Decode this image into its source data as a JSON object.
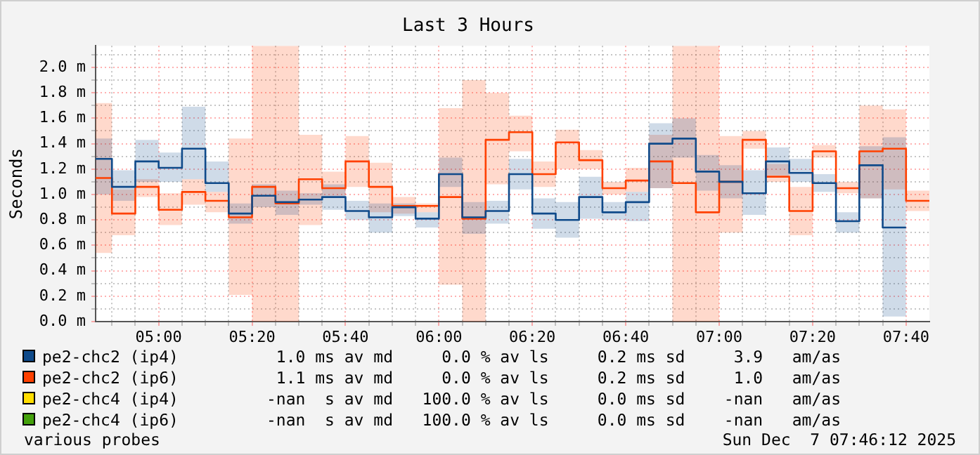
{
  "chart_data": {
    "type": "step",
    "title": "Last 3 Hours",
    "ylabel": "Seconds",
    "x": [
      4.775,
      4.8333,
      4.9167,
      5.0,
      5.0833,
      5.1667,
      5.25,
      5.3333,
      5.4167,
      5.5,
      5.5833,
      5.6667,
      5.75,
      5.8333,
      5.9167,
      6.0,
      6.0833,
      6.1667,
      6.25,
      6.3333,
      6.4167,
      6.5,
      6.5833,
      6.6667,
      6.75,
      6.8333,
      6.9167,
      7.0,
      7.0833,
      7.1667,
      7.25,
      7.3333,
      7.4167,
      7.5,
      7.5833,
      7.6667,
      7.75
    ],
    "xlim": [
      4.775,
      7.75
    ],
    "xticks": [
      {
        "value": 4.8333,
        "label": null
      },
      {
        "value": 4.9167,
        "label": null
      },
      {
        "value": 5.0,
        "label": "05:00"
      },
      {
        "value": 5.0833,
        "label": null
      },
      {
        "value": 5.1667,
        "label": null
      },
      {
        "value": 5.25,
        "label": null
      },
      {
        "value": 5.3333,
        "label": "05:20"
      },
      {
        "value": 5.4167,
        "label": null
      },
      {
        "value": 5.5,
        "label": null
      },
      {
        "value": 5.5833,
        "label": null
      },
      {
        "value": 5.6667,
        "label": "05:40"
      },
      {
        "value": 5.75,
        "label": null
      },
      {
        "value": 5.8333,
        "label": null
      },
      {
        "value": 5.9167,
        "label": null
      },
      {
        "value": 6.0,
        "label": "06:00"
      },
      {
        "value": 6.0833,
        "label": null
      },
      {
        "value": 6.1667,
        "label": null
      },
      {
        "value": 6.25,
        "label": null
      },
      {
        "value": 6.3333,
        "label": "06:20"
      },
      {
        "value": 6.4167,
        "label": null
      },
      {
        "value": 6.5,
        "label": null
      },
      {
        "value": 6.5833,
        "label": null
      },
      {
        "value": 6.6667,
        "label": "06:40"
      },
      {
        "value": 6.75,
        "label": null
      },
      {
        "value": 6.8333,
        "label": null
      },
      {
        "value": 6.9167,
        "label": null
      },
      {
        "value": 7.0,
        "label": "07:00"
      },
      {
        "value": 7.0833,
        "label": null
      },
      {
        "value": 7.1667,
        "label": null
      },
      {
        "value": 7.25,
        "label": null
      },
      {
        "value": 7.3333,
        "label": "07:20"
      },
      {
        "value": 7.4167,
        "label": null
      },
      {
        "value": 7.5,
        "label": null
      },
      {
        "value": 7.5833,
        "label": null
      },
      {
        "value": 7.6667,
        "label": "07:40"
      }
    ],
    "ylim": [
      0,
      2.17
    ],
    "yticks": [
      {
        "value": 0.0,
        "label": "0.0 m"
      },
      {
        "value": 0.1,
        "label": null
      },
      {
        "value": 0.2,
        "label": "0.2 m"
      },
      {
        "value": 0.3,
        "label": null
      },
      {
        "value": 0.4,
        "label": "0.4 m"
      },
      {
        "value": 0.5,
        "label": null
      },
      {
        "value": 0.6,
        "label": "0.6 m"
      },
      {
        "value": 0.7,
        "label": null
      },
      {
        "value": 0.8,
        "label": "0.8 m"
      },
      {
        "value": 0.9,
        "label": null
      },
      {
        "value": 1.0,
        "label": "1.0 m"
      },
      {
        "value": 1.1,
        "label": null
      },
      {
        "value": 1.2,
        "label": "1.2 m"
      },
      {
        "value": 1.3,
        "label": null
      },
      {
        "value": 1.4,
        "label": "1.4 m"
      },
      {
        "value": 1.5,
        "label": null
      },
      {
        "value": 1.6,
        "label": "1.6 m"
      },
      {
        "value": 1.7,
        "label": null
      },
      {
        "value": 1.8,
        "label": "1.8 m"
      },
      {
        "value": 1.9,
        "label": null
      },
      {
        "value": 2.0,
        "label": "2.0 m"
      },
      {
        "value": 2.1,
        "label": null
      }
    ],
    "grid": true,
    "legend": "bottom",
    "series": [
      {
        "name": "pe2-chc2 (ip4)",
        "color": "#0f4a8a",
        "values": [
          1.28,
          1.06,
          1.26,
          1.21,
          1.36,
          1.09,
          0.85,
          0.99,
          0.94,
          0.96,
          0.98,
          0.87,
          0.82,
          0.9,
          0.81,
          1.16,
          0.82,
          0.87,
          1.16,
          0.85,
          0.8,
          0.98,
          0.86,
          0.94,
          1.4,
          1.44,
          1.18,
          1.1,
          1.01,
          1.26,
          1.17,
          1.09,
          0.79,
          1.23,
          0.74,
          0.74,
          null
        ],
        "lower": [
          1.0,
          0.95,
          1.1,
          1.1,
          1.12,
          1.02,
          0.77,
          0.9,
          0.84,
          0.92,
          0.88,
          0.8,
          0.7,
          0.83,
          0.74,
          1.06,
          0.69,
          0.77,
          1.04,
          0.73,
          0.66,
          0.81,
          0.8,
          0.79,
          1.05,
          1.29,
          1.03,
          0.97,
          0.84,
          1.15,
          1.1,
          1.02,
          0.7,
          0.97,
          0.04,
          0.04,
          null
        ],
        "upper": [
          1.44,
          1.19,
          1.43,
          1.33,
          1.69,
          1.26,
          0.93,
          1.08,
          1.03,
          1.01,
          1.08,
          0.95,
          0.93,
          0.93,
          0.86,
          1.29,
          0.94,
          0.95,
          1.28,
          0.97,
          0.94,
          1.14,
          0.94,
          1.02,
          1.56,
          1.6,
          1.31,
          1.23,
          1.19,
          1.37,
          1.28,
          1.16,
          0.86,
          1.38,
          1.45,
          1.45,
          null
        ]
      },
      {
        "name": "pe2-chc2 (ip6)",
        "color": "#ff4000",
        "values": [
          1.13,
          0.85,
          1.06,
          0.88,
          1.02,
          0.95,
          0.82,
          1.06,
          0.93,
          1.12,
          1.05,
          1.26,
          1.06,
          0.91,
          0.91,
          0.98,
          0.81,
          1.43,
          1.49,
          1.16,
          1.41,
          1.27,
          1.05,
          1.11,
          1.26,
          1.09,
          0.86,
          1.1,
          1.43,
          1.14,
          0.87,
          1.34,
          1.05,
          1.34,
          1.36,
          0.95,
          0.95
        ],
        "lower": [
          0.54,
          0.68,
          0.98,
          0.76,
          0.92,
          0.86,
          0.21,
          0,
          0,
          0.76,
          0.99,
          1.06,
          0.86,
          0.85,
          0.86,
          0.29,
          0,
          1.08,
          1.34,
          1.06,
          1.2,
          1.2,
          1.0,
          1.02,
          1.05,
          0,
          0,
          0.7,
          1.36,
          1.1,
          0.68,
          1.29,
          1.01,
          0.97,
          1.04,
          0.87,
          0.87
        ],
        "upper": [
          1.72,
          1.04,
          1.12,
          1.01,
          1.12,
          1.02,
          1.44,
          2.17,
          2.17,
          1.47,
          1.18,
          1.46,
          1.25,
          0.98,
          0.93,
          1.68,
          1.9,
          1.8,
          1.62,
          1.26,
          1.51,
          1.35,
          1.1,
          1.21,
          1.47,
          2.17,
          2.17,
          1.46,
          1.5,
          1.24,
          1.06,
          1.39,
          1.1,
          1.7,
          1.67,
          1.03,
          1.03
        ]
      },
      {
        "name": "pe2-chc4 (ip4)",
        "color": "#ffdd00",
        "values": [
          null,
          null,
          null,
          null,
          null,
          null,
          null,
          null,
          null,
          null,
          null,
          null,
          null,
          null,
          null,
          null,
          null,
          null,
          null,
          null,
          null,
          null,
          null,
          null,
          null,
          null,
          null,
          null,
          null,
          null,
          null,
          null,
          null,
          null,
          null,
          null,
          null
        ]
      },
      {
        "name": "pe2-chc4 (ip6)",
        "color": "#44a10c",
        "values": [
          null,
          null,
          null,
          null,
          null,
          null,
          null,
          null,
          null,
          null,
          null,
          null,
          null,
          null,
          null,
          null,
          null,
          null,
          null,
          null,
          null,
          null,
          null,
          null,
          null,
          null,
          null,
          null,
          null,
          null,
          null,
          null,
          null,
          null,
          null,
          null,
          null
        ]
      }
    ],
    "annotations": [
      "1.0 ms av md     0.0 % av ls     0.2 ms sd     3.9   am/as",
      "1.1 ms av md     0.0 % av ls     0.2 ms sd     1.0   am/as",
      "-nan  s av md   100.0 % av ls     0.0 ms sd    -nan   am/as",
      "-nan  s av md   100.0 % av ls     0.0 ms sd    -nan   am/as",
      "various probes",
      "Sun Dec  7 07:46:12 2025"
    ]
  }
}
